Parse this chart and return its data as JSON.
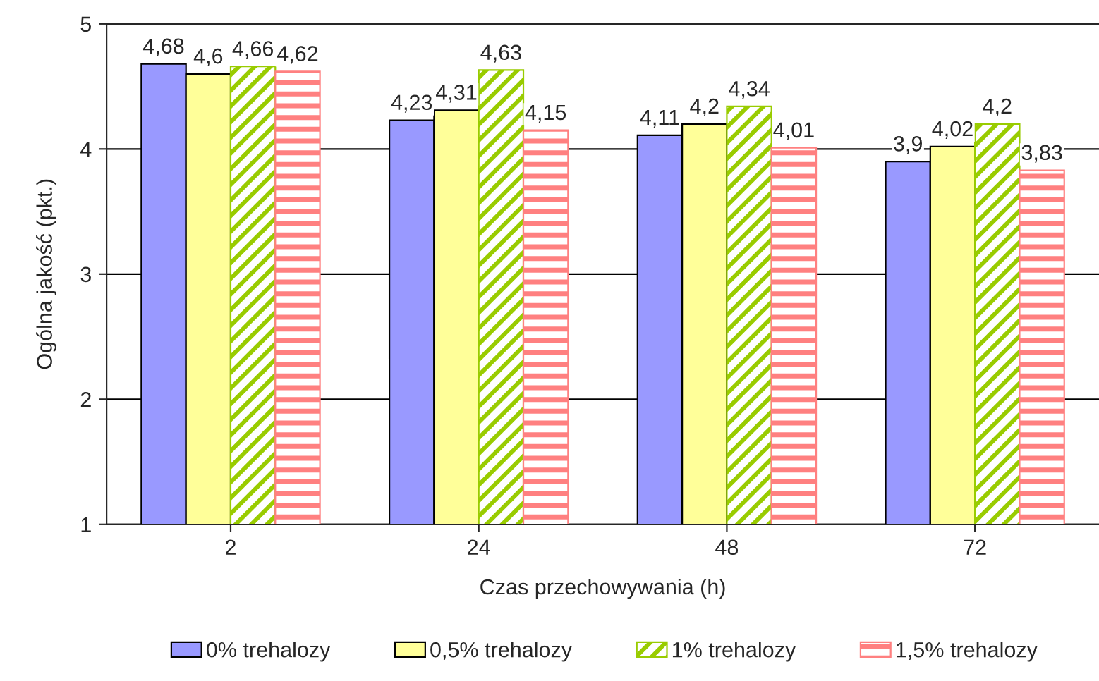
{
  "chart_data": {
    "type": "bar",
    "xlabel": "Czas przechowywania (h)",
    "ylabel": "Ogólna jakość (pkt.)",
    "categories": [
      "2",
      "24",
      "48",
      "72"
    ],
    "series": [
      {
        "name": "0% trehalozy",
        "color": "#9999ff",
        "values": [
          4.68,
          4.23,
          4.11,
          3.9
        ],
        "value_labels": [
          "4,68",
          "4,23",
          "4,11",
          "3,9"
        ]
      },
      {
        "name": "0,5% trehalozy",
        "color": "#ffff99",
        "values": [
          4.6,
          4.31,
          4.2,
          4.02
        ],
        "value_labels": [
          "4,6",
          "4,31",
          "4,2",
          "4,02"
        ]
      },
      {
        "name": "1% trehalozy",
        "color": "#99cc00",
        "values": [
          4.66,
          4.63,
          4.34,
          4.2
        ],
        "value_labels": [
          "4,66",
          "4,63",
          "4,34",
          "4,2"
        ]
      },
      {
        "name": "1,5% trehalozy",
        "color": "#ff8080",
        "values": [
          4.62,
          4.15,
          4.01,
          3.83
        ],
        "value_labels": [
          "4,62",
          "4,15",
          "4,01",
          "3,83"
        ]
      }
    ],
    "ylim": [
      1,
      5
    ],
    "yticks": [
      1,
      2,
      3,
      4,
      5
    ],
    "grid": "y",
    "legend": "bottom"
  }
}
